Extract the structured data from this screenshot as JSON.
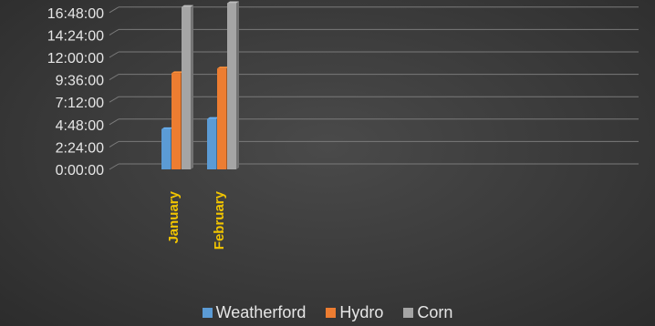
{
  "chart_data": {
    "type": "bar",
    "categories": [
      "January",
      "February"
    ],
    "series": [
      {
        "name": "Weatherford",
        "values": [
          4.3,
          5.4
        ],
        "color": "#5b9bd5"
      },
      {
        "name": "Hydro",
        "values": [
          10.3,
          10.8
        ],
        "color": "#ed7d31"
      },
      {
        "name": "Corn",
        "values": [
          17.4,
          17.8
        ],
        "color": "#a5a5a5"
      }
    ],
    "y_unit": "hours",
    "ylim": [
      0,
      19.2
    ],
    "y_ticks": [
      "0:00:00",
      "2:24:00",
      "4:48:00",
      "7:12:00",
      "9:36:00",
      "12:00:00",
      "14:24:00",
      "16:48:00"
    ],
    "title": "",
    "xlabel": "",
    "ylabel": "",
    "grid": true,
    "legend_position": "bottom"
  }
}
